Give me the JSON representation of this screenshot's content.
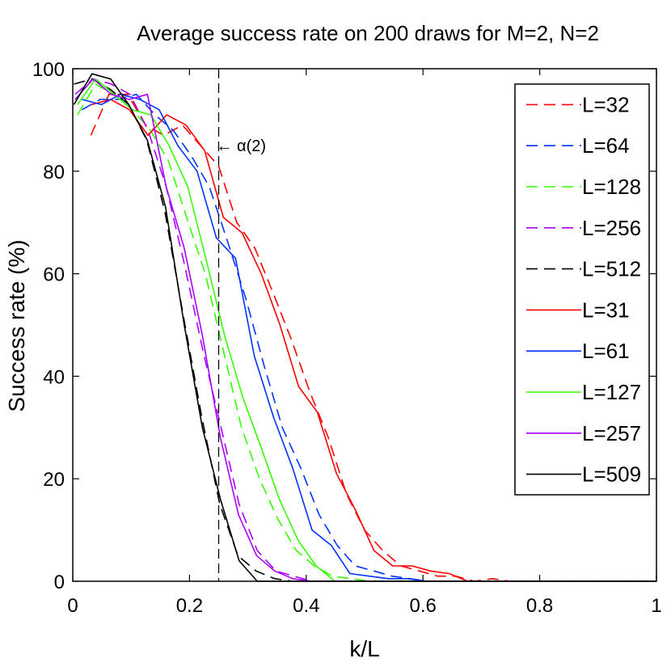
{
  "chart_data": {
    "type": "line",
    "title": "Average success rate on 200 draws for M=2, N=2",
    "xlabel": "k/L",
    "ylabel": "Success rate (%)",
    "xlim": [
      0,
      1
    ],
    "ylim": [
      0,
      100
    ],
    "xticks": [
      "0",
      "0.2",
      "0.4",
      "0.6",
      "0.8",
      "1"
    ],
    "yticks": [
      "0",
      "20",
      "40",
      "60",
      "80",
      "100"
    ],
    "grid": false,
    "legend_position": "top-right",
    "vline": {
      "x": 0.25,
      "label": "← α(2)",
      "label_y": 85
    },
    "series": [
      {
        "name": "L=32",
        "color": "#ff0000",
        "dash": true,
        "x": [
          0.031,
          0.062,
          0.094,
          0.125,
          0.156,
          0.188,
          0.219,
          0.25,
          0.281,
          0.312,
          0.344,
          0.375,
          0.406,
          0.438,
          0.469,
          0.5,
          0.531,
          0.562,
          0.594,
          0.625,
          0.656,
          0.688,
          0.719,
          0.75,
          0.781,
          0.812,
          0.844,
          0.875,
          0.906,
          0.938,
          0.969,
          1.0
        ],
        "values": [
          87,
          95,
          95,
          89,
          87,
          89,
          85,
          81,
          70,
          65,
          56,
          47,
          37,
          28,
          17,
          10,
          6,
          3,
          2,
          1,
          1,
          0,
          0.5,
          0,
          0,
          0,
          0,
          0,
          0,
          0,
          0,
          0
        ]
      },
      {
        "name": "L=64",
        "color": "#0033ff",
        "dash": true,
        "x": [
          0.016,
          0.047,
          0.078,
          0.109,
          0.141,
          0.172,
          0.203,
          0.234,
          0.266,
          0.297,
          0.328,
          0.359,
          0.391,
          0.422,
          0.453,
          0.484,
          0.516,
          0.547,
          0.578,
          0.609,
          0.641,
          0.672,
          0.703,
          0.734,
          0.766,
          0.797,
          0.828,
          0.859,
          0.891,
          0.922,
          0.953,
          0.984
        ],
        "values": [
          92,
          94,
          94,
          95,
          91,
          88,
          83,
          77,
          66,
          55,
          42,
          30,
          22,
          13,
          7,
          3,
          2,
          1,
          0.5,
          0,
          0,
          0,
          0,
          0,
          0,
          0,
          0,
          0,
          0,
          0,
          0,
          0
        ]
      },
      {
        "name": "L=128",
        "color": "#33ff00",
        "dash": true,
        "x": [
          0.008,
          0.039,
          0.07,
          0.102,
          0.133,
          0.164,
          0.195,
          0.227,
          0.258,
          0.289,
          0.32,
          0.352,
          0.383,
          0.414,
          0.445,
          0.477,
          0.508,
          0.539,
          0.57,
          0.6,
          0.65,
          0.7,
          0.75,
          0.8,
          0.85,
          0.9,
          0.95,
          1.0
        ],
        "values": [
          91,
          97,
          95,
          92,
          88,
          82,
          71,
          60,
          45,
          30,
          20,
          12,
          6,
          3,
          1,
          0.5,
          0,
          0,
          0,
          0,
          0,
          0,
          0,
          0,
          0,
          0,
          0,
          0
        ]
      },
      {
        "name": "L=256",
        "color": "#aa00ff",
        "dash": true,
        "x": [
          0.004,
          0.035,
          0.066,
          0.098,
          0.129,
          0.16,
          0.191,
          0.223,
          0.254,
          0.285,
          0.316,
          0.348,
          0.379,
          0.41,
          0.441,
          0.5,
          0.55,
          0.6,
          0.65,
          0.7,
          0.75,
          0.8,
          0.85,
          0.9,
          0.95,
          1.0
        ],
        "values": [
          95,
          98,
          97,
          95,
          88,
          77,
          62,
          45,
          30,
          15,
          6,
          2,
          1,
          0,
          0,
          0,
          0,
          0,
          0,
          0,
          0,
          0,
          0,
          0,
          0,
          0
        ]
      },
      {
        "name": "L=512",
        "color": "#000000",
        "dash": true,
        "x": [
          0.002,
          0.033,
          0.064,
          0.096,
          0.127,
          0.158,
          0.189,
          0.221,
          0.252,
          0.283,
          0.314,
          0.346,
          0.377,
          0.4,
          0.45,
          0.5,
          0.55,
          0.6,
          0.65,
          0.7,
          0.75,
          0.8,
          0.85,
          0.9,
          0.95,
          1.0
        ],
        "values": [
          97,
          98,
          96,
          93,
          86,
          72,
          52,
          32,
          15,
          5,
          2,
          0.5,
          0,
          0,
          0,
          0,
          0,
          0,
          0,
          0,
          0,
          0,
          0,
          0,
          0,
          0
        ]
      },
      {
        "name": "L=31",
        "color": "#ff0000",
        "dash": false,
        "x": [
          0.032,
          0.065,
          0.097,
          0.129,
          0.161,
          0.194,
          0.226,
          0.258,
          0.29,
          0.323,
          0.355,
          0.387,
          0.419,
          0.452,
          0.484,
          0.516,
          0.548,
          0.581,
          0.613,
          0.645,
          0.677,
          0.71,
          0.742,
          0.774,
          0.806,
          0.839,
          0.871,
          0.903,
          0.935,
          0.968,
          1.0
        ],
        "values": [
          93,
          94,
          92,
          87,
          91,
          89,
          84,
          71,
          68,
          60,
          50,
          38,
          33,
          21,
          14,
          6,
          3,
          3,
          2,
          1.5,
          0,
          0,
          0,
          0,
          0,
          0,
          0,
          0,
          0,
          0,
          0
        ]
      },
      {
        "name": "L=61",
        "color": "#0033ff",
        "dash": false,
        "x": [
          0.016,
          0.049,
          0.082,
          0.115,
          0.148,
          0.18,
          0.213,
          0.246,
          0.279,
          0.311,
          0.344,
          0.377,
          0.41,
          0.443,
          0.475,
          0.508,
          0.541,
          0.574,
          0.607,
          0.639,
          0.672,
          0.705,
          0.738,
          0.77,
          0.803,
          0.836,
          0.869,
          0.902,
          0.934,
          0.967,
          1.0
        ],
        "values": [
          94,
          93,
          95,
          94,
          92,
          85,
          80,
          67,
          63,
          44,
          32,
          22,
          10,
          7,
          1.5,
          1,
          0.5,
          0.5,
          0,
          0,
          0,
          0,
          0,
          0,
          0,
          0,
          0,
          0,
          0,
          0,
          0
        ]
      },
      {
        "name": "L=127",
        "color": "#33ff00",
        "dash": false,
        "x": [
          0.008,
          0.039,
          0.071,
          0.102,
          0.134,
          0.165,
          0.197,
          0.228,
          0.26,
          0.291,
          0.323,
          0.354,
          0.386,
          0.417,
          0.449,
          0.48,
          0.5,
          0.55,
          0.6,
          0.65,
          0.7,
          0.75,
          0.8,
          0.85,
          0.9,
          0.95,
          1.0
        ],
        "values": [
          93,
          98,
          95,
          92,
          91,
          85,
          77,
          63,
          48,
          36,
          26,
          16,
          8,
          3,
          0,
          0,
          0,
          0,
          0,
          0,
          0,
          0,
          0,
          0,
          0,
          0,
          0
        ]
      },
      {
        "name": "L=257",
        "color": "#aa00ff",
        "dash": false,
        "x": [
          0.004,
          0.035,
          0.066,
          0.097,
          0.128,
          0.16,
          0.191,
          0.222,
          0.253,
          0.284,
          0.315,
          0.346,
          0.377,
          0.409,
          0.44,
          0.5,
          0.55,
          0.6,
          0.65,
          0.7,
          0.75,
          0.8,
          0.85,
          0.9,
          0.95,
          1.0
        ],
        "values": [
          94,
          98,
          95,
          94,
          95,
          77,
          65,
          48,
          28,
          13,
          5,
          2,
          0.5,
          0,
          0,
          0,
          0,
          0,
          0,
          0,
          0,
          0,
          0,
          0,
          0,
          0
        ]
      },
      {
        "name": "L=509",
        "color": "#000000",
        "dash": false,
        "x": [
          0.002,
          0.033,
          0.065,
          0.096,
          0.128,
          0.159,
          0.191,
          0.222,
          0.253,
          0.285,
          0.316,
          0.348,
          0.4,
          0.45,
          0.5,
          0.55,
          0.6,
          0.65,
          0.7,
          0.75,
          0.8,
          0.85,
          0.9,
          0.95,
          1.0
        ],
        "values": [
          93,
          99,
          98,
          93,
          86,
          73,
          50,
          30,
          16,
          4,
          0,
          0,
          0,
          0,
          0,
          0,
          0,
          0,
          0,
          0,
          0,
          0,
          0,
          0,
          0
        ]
      }
    ]
  }
}
